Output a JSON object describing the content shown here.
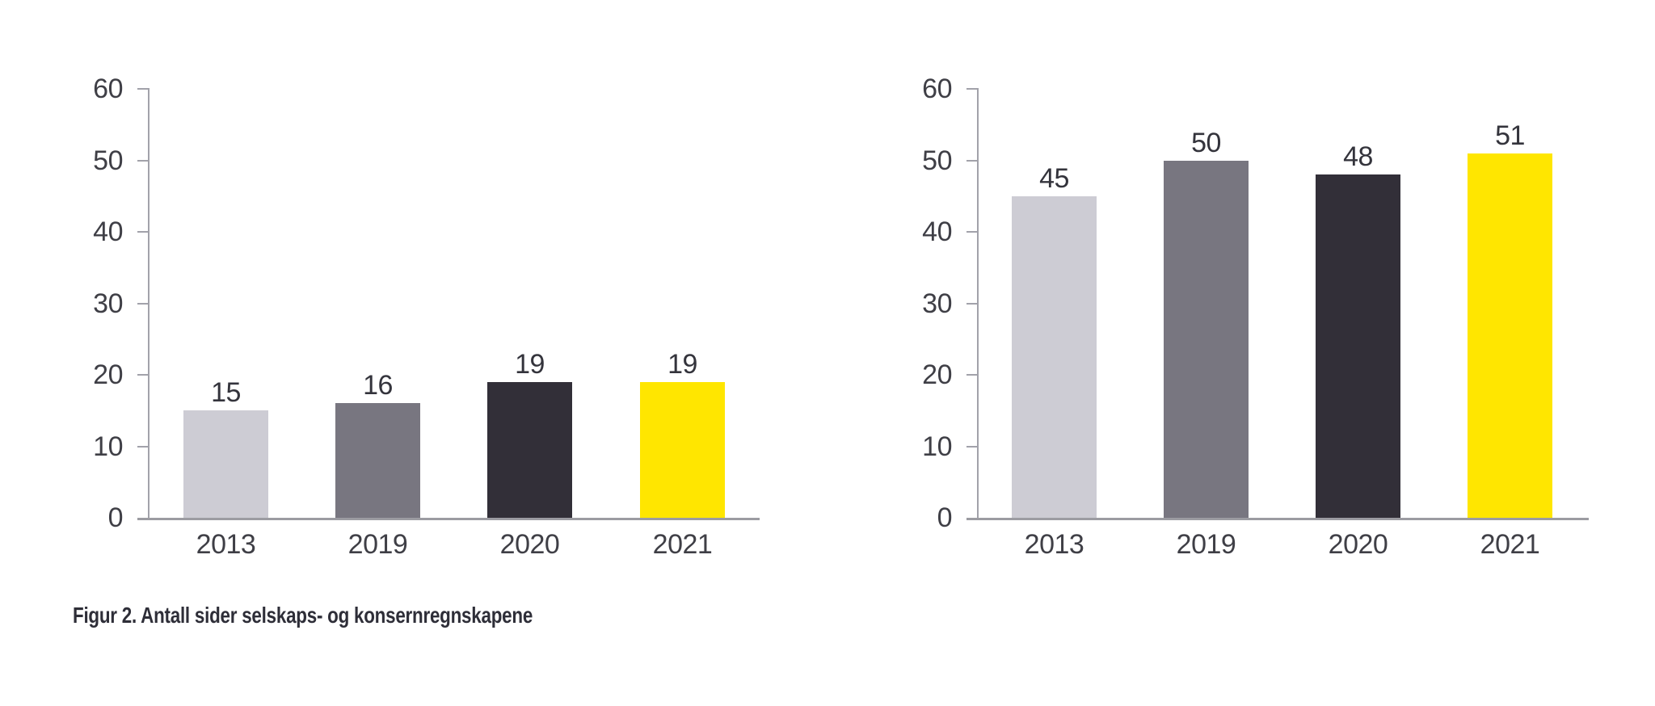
{
  "figure": {
    "caption": "Figur 2. Antall sider selskaps- og konsernregnskapene"
  },
  "colors": {
    "background": "#FFFFFF",
    "bar_2013": "#CDCCD4",
    "bar_2019": "#787680",
    "bar_2020": "#322F38",
    "bar_2021": "#FFE600",
    "axis": "#A2A2AA",
    "baseline": "#9C9CA2",
    "tick_text": "#3F3F46",
    "value_text": "#34343C",
    "caption_text": "#2E2E38"
  },
  "chart_data": [
    {
      "type": "bar",
      "title": "",
      "categories": [
        "2013",
        "2019",
        "2020",
        "2021"
      ],
      "values": [
        15,
        16,
        19,
        19
      ],
      "data_labels": [
        "15",
        "16",
        "19",
        "19"
      ],
      "bar_colors": [
        "#CDCCD4",
        "#787680",
        "#322F38",
        "#FFE600"
      ],
      "xlabel": "",
      "ylabel": "",
      "ylim": [
        0,
        60
      ],
      "yticks": [
        0,
        10,
        20,
        30,
        40,
        50,
        60
      ],
      "grid": false,
      "legend": false
    },
    {
      "type": "bar",
      "title": "",
      "categories": [
        "2013",
        "2019",
        "2020",
        "2021"
      ],
      "values": [
        45,
        50,
        48,
        51
      ],
      "data_labels": [
        "45",
        "50",
        "48",
        "51"
      ],
      "bar_colors": [
        "#CDCCD4",
        "#787680",
        "#322F38",
        "#FFE600"
      ],
      "xlabel": "",
      "ylabel": "",
      "ylim": [
        0,
        60
      ],
      "yticks": [
        0,
        10,
        20,
        30,
        40,
        50,
        60
      ],
      "grid": false,
      "legend": false
    }
  ]
}
